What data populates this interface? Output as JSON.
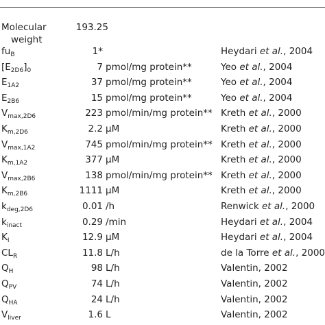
{
  "table": {
    "rows": [
      {
        "param": [
          {
            "t": "Molecular weight"
          }
        ],
        "number": "193.25"
      },
      {
        "param": [
          {
            "t": "fu"
          },
          {
            "s": "B"
          }
        ],
        "number": "1*",
        "ref": {
          "author": "Heydari ",
          "etal": "et al.",
          "rest": ", 2004"
        }
      },
      {
        "param": [
          {
            "t": "[E"
          },
          {
            "s": "2D6"
          },
          {
            "t": "]"
          },
          {
            "s": "0"
          }
        ],
        "number": "7",
        "unit": "pmol/mg protein**",
        "ref": {
          "author": "Yeo ",
          "etal": "et al.",
          "rest": ", 2004"
        }
      },
      {
        "param": [
          {
            "t": "E"
          },
          {
            "s": "1A2"
          }
        ],
        "number": "37",
        "unit": "pmol/mg protein**",
        "ref": {
          "author": "Yeo ",
          "etal": "et al.",
          "rest": ", 2004"
        }
      },
      {
        "param": [
          {
            "t": "E"
          },
          {
            "s": "2B6"
          }
        ],
        "number": "15",
        "unit": "pmol/mg protein**",
        "ref": {
          "author": "Yeo ",
          "etal": "et al.",
          "rest": ", 2004"
        }
      },
      {
        "param": [
          {
            "t": "V"
          },
          {
            "s": "max,2D6"
          }
        ],
        "number": "223",
        "unit": "pmol/min/mg protein**",
        "ref": {
          "author": "Kreth ",
          "etal": "et al.",
          "rest": ", 2000"
        }
      },
      {
        "param": [
          {
            "t": "K"
          },
          {
            "s": "m,2D6"
          }
        ],
        "number": "2.2",
        "unit": "μM",
        "ref": {
          "author": "Kreth ",
          "etal": "et al.",
          "rest": ", 2000"
        }
      },
      {
        "param": [
          {
            "t": "V"
          },
          {
            "s": "max,1A2"
          }
        ],
        "number": "745",
        "unit": "pmol/min/mg protein**",
        "ref": {
          "author": "Kreth ",
          "etal": "et al.",
          "rest": ", 2000"
        }
      },
      {
        "param": [
          {
            "t": "K"
          },
          {
            "s": "m,1A2"
          }
        ],
        "number": "377",
        "unit": "μM",
        "ref": {
          "author": "Kreth ",
          "etal": "et al.",
          "rest": ", 2000"
        }
      },
      {
        "param": [
          {
            "t": "V"
          },
          {
            "s": "max,2B6"
          }
        ],
        "number": "138",
        "unit": "pmol/min/mg protein**",
        "ref": {
          "author": "Kreth ",
          "etal": "et al.",
          "rest": ", 2000"
        }
      },
      {
        "param": [
          {
            "t": "K"
          },
          {
            "s": "m,2B6"
          }
        ],
        "number": "1111",
        "unit": "μM",
        "ref": {
          "author": "Kreth ",
          "etal": "et al.",
          "rest": ", 2000"
        }
      },
      {
        "param": [
          {
            "t": "k"
          },
          {
            "s": "deg,2D6"
          }
        ],
        "number": "0.01",
        "unit": "/h",
        "ref": {
          "author": "Renwick ",
          "etal": "et al.",
          "rest": ", 2000"
        }
      },
      {
        "param": [
          {
            "t": "k"
          },
          {
            "s": "inact"
          }
        ],
        "number": "0.29",
        "unit": "/min",
        "ref": {
          "author": "Heydari ",
          "etal": "et al.",
          "rest": ", 2004"
        }
      },
      {
        "param": [
          {
            "t": "K"
          },
          {
            "s": "I"
          }
        ],
        "number": "12.9",
        "unit": "μM",
        "ref": {
          "author": "Heydari ",
          "etal": "et al.",
          "rest": ", 2004"
        }
      },
      {
        "param": [
          {
            "t": "CL"
          },
          {
            "s": "R"
          }
        ],
        "number": "11.8",
        "unit": "L/h",
        "ref": {
          "author": "de la Torre ",
          "etal": "et al.",
          "rest": ", 2000"
        }
      },
      {
        "param": [
          {
            "t": "Q"
          },
          {
            "s": "H"
          }
        ],
        "number": "98",
        "unit": "L/h",
        "ref": {
          "author": "Valentin, 2002"
        }
      },
      {
        "param": [
          {
            "t": "Q"
          },
          {
            "s": "PV"
          }
        ],
        "number": "74",
        "unit": "L/h",
        "ref": {
          "author": "Valentin, 2002"
        }
      },
      {
        "param": [
          {
            "t": "Q"
          },
          {
            "s": "HA"
          }
        ],
        "number": "24",
        "unit": "L/h",
        "ref": {
          "author": "Valentin, 2002"
        }
      },
      {
        "param": [
          {
            "t": "V"
          },
          {
            "s": "liver"
          }
        ],
        "number": "1.6",
        "unit": "L",
        "ref": {
          "author": "Valentin, 2002"
        }
      }
    ]
  }
}
